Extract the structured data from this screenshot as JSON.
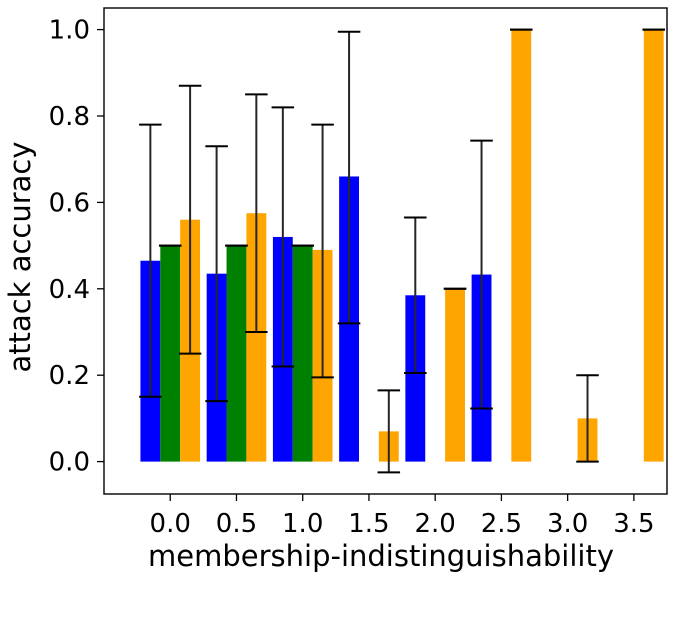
{
  "chart_data": {
    "type": "bar",
    "xlabel": "membership-indistinguishability",
    "ylabel": "attack accuracy",
    "xlim": [
      -0.5,
      3.75
    ],
    "ylim": [
      -0.075,
      1.05
    ],
    "x_ticks": [
      "0.0",
      "0.5",
      "1.0",
      "1.5",
      "2.0",
      "2.5",
      "3.0",
      "3.5"
    ],
    "y_ticks": [
      "0.0",
      "0.2",
      "0.4",
      "0.6",
      "0.8",
      "1.0"
    ],
    "x_tick_values": [
      0.0,
      0.5,
      1.0,
      1.5,
      2.0,
      2.5,
      3.0,
      3.5
    ],
    "y_tick_values": [
      0.0,
      0.2,
      0.4,
      0.6,
      0.8,
      1.0
    ],
    "bar_width": 0.15,
    "grid": false,
    "series": [
      {
        "color": "#0000ff",
        "points": [
          {
            "x": -0.15,
            "value": 0.465,
            "err_low": 0.15,
            "err_high": 0.78
          },
          {
            "x": 0.35,
            "value": 0.435,
            "err_low": 0.14,
            "err_high": 0.73
          },
          {
            "x": 0.85,
            "value": 0.52,
            "err_low": 0.22,
            "err_high": 0.82
          },
          {
            "x": 1.35,
            "value": 0.66,
            "err_low": 0.32,
            "err_high": 0.995
          },
          {
            "x": 1.85,
            "value": 0.385,
            "err_low": 0.205,
            "err_high": 0.565
          },
          {
            "x": 2.35,
            "value": 0.433,
            "err_low": 0.123,
            "err_high": 0.743
          }
        ]
      },
      {
        "color": "#008000",
        "points": [
          {
            "x": 0.0,
            "value": 0.5,
            "err_low": 0.5,
            "err_high": 0.5
          },
          {
            "x": 0.5,
            "value": 0.5,
            "err_low": 0.5,
            "err_high": 0.5
          },
          {
            "x": 1.0,
            "value": 0.5,
            "err_low": 0.5,
            "err_high": 0.5
          }
        ]
      },
      {
        "color": "#ffa500",
        "points": [
          {
            "x": 0.15,
            "value": 0.56,
            "err_low": 0.25,
            "err_high": 0.87
          },
          {
            "x": 0.65,
            "value": 0.575,
            "err_low": 0.3,
            "err_high": 0.85
          },
          {
            "x": 1.15,
            "value": 0.49,
            "err_low": 0.195,
            "err_high": 0.78
          },
          {
            "x": 1.65,
            "value": 0.07,
            "err_low": -0.025,
            "err_high": 0.165
          },
          {
            "x": 2.15,
            "value": 0.4,
            "err_low": 0.4,
            "err_high": 0.4
          },
          {
            "x": 2.65,
            "value": 1.0,
            "err_low": 1.0,
            "err_high": 1.0
          },
          {
            "x": 3.15,
            "value": 0.1,
            "err_low": 0.0,
            "err_high": 0.2
          },
          {
            "x": 3.65,
            "value": 1.0,
            "err_low": 1.0,
            "err_high": 1.0
          }
        ]
      }
    ]
  }
}
